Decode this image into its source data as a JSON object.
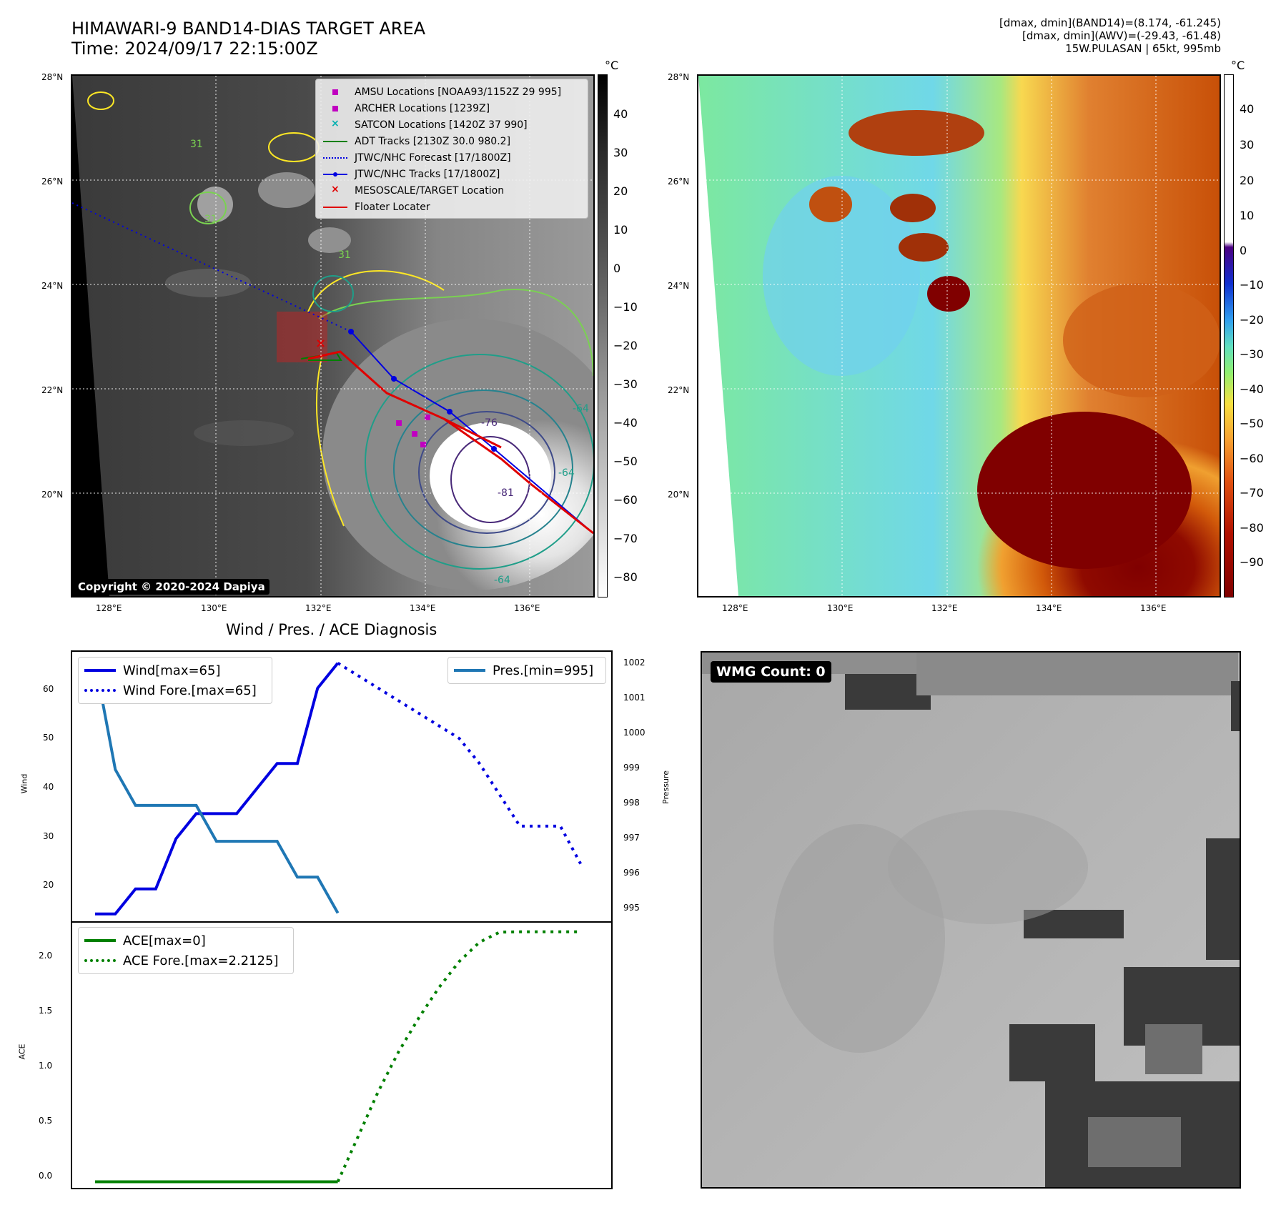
{
  "header": {
    "title_line1": "HIMAWARI-9 BAND14-DIAS TARGET AREA",
    "title_line2": "Time: 2024/09/17 22:15:00Z",
    "right_line1": "[dmax, dmin](BAND14)=(8.174, -61.245)",
    "right_line2": "[dmax, dmin](AWV)=(-29.43, -61.48)",
    "right_line3": "15W.PULASAN | 65kt, 995mb"
  },
  "map_axes": {
    "lat_labels": [
      "28°N",
      "26°N",
      "24°N",
      "22°N",
      "20°N"
    ],
    "lon_labels": [
      "128°E",
      "130°E",
      "132°E",
      "134°E",
      "136°E"
    ]
  },
  "map1": {
    "legend": [
      {
        "label": "AMSU Locations [NOAA93/1152Z 29 995]",
        "color": "#c000c0",
        "kind": "square"
      },
      {
        "label": "ARCHER Locations [1239Z]",
        "color": "#c000c0",
        "kind": "square"
      },
      {
        "label": "SATCON Locations [1420Z 37 990]",
        "color": "#00b0b0",
        "kind": "x"
      },
      {
        "label": "ADT Tracks [2130Z 30.0 980.2]",
        "color": "#008000",
        "kind": "line"
      },
      {
        "label": "JTWC/NHC Forecast [17/1800Z]",
        "color": "#0000e0",
        "kind": "dotted"
      },
      {
        "label": "JTWC/NHC Tracks [17/1800Z]",
        "color": "#0000e0",
        "kind": "linedot"
      },
      {
        "label": "MESOSCALE/TARGET Location",
        "color": "#e00000",
        "kind": "x"
      },
      {
        "label": "Floater Locater",
        "color": "#e00000",
        "kind": "line"
      }
    ],
    "copyright": "Copyright © 2020-2024 Dapiya",
    "contour_labels": [
      "31",
      "31",
      "31",
      "-64",
      "-76",
      "-81",
      "-64",
      "-64"
    ],
    "colorbar_unit": "°C",
    "colorbar_ticks": [
      "40",
      "30",
      "20",
      "10",
      "0",
      "−10",
      "−20",
      "−30",
      "−40",
      "−50",
      "−60",
      "−70",
      "−80"
    ]
  },
  "map2": {
    "colorbar_unit": "°C",
    "colorbar_ticks": [
      "40",
      "30",
      "20",
      "10",
      "0",
      "−10",
      "−20",
      "−30",
      "−40",
      "−50",
      "−60",
      "−70",
      "−80",
      "−90"
    ]
  },
  "diag": {
    "title": "Wind / Pres. / ACE Diagnosis",
    "wind_ylabel": "Wind",
    "pres_ylabel": "Pressure",
    "ace_ylabel": "ACE",
    "wind_legend": [
      "Wind[max=65]",
      "Wind Fore.[max=65]"
    ],
    "pres_legend": "Pres.[min=995]",
    "ace_legend": [
      "ACE[max=0]",
      "ACE Fore.[max=2.2125]"
    ],
    "wind_ticks": [
      "60",
      "50",
      "40",
      "30",
      "20"
    ],
    "pres_ticks": [
      "1002",
      "1001",
      "1000",
      "999",
      "998",
      "997",
      "996",
      "995"
    ],
    "ace_ticks": [
      "2.0",
      "1.5",
      "1.0",
      "0.5",
      "0.0"
    ]
  },
  "wmg": {
    "label": "WMG Count: 0"
  },
  "chart_data": [
    {
      "type": "line",
      "title": "Wind / Pres. / ACE Diagnosis",
      "ylabel": "Wind",
      "ylim": [
        13,
        67
      ],
      "series": [
        {
          "name": "Wind[max=65]",
          "color": "#0000e0",
          "style": "solid",
          "x": [
            0,
            1,
            2,
            3,
            4,
            5,
            6,
            7,
            8,
            9,
            10,
            11,
            12
          ],
          "values": [
            15,
            15,
            20,
            20,
            30,
            35,
            35,
            35,
            40,
            45,
            45,
            60,
            65
          ]
        },
        {
          "name": "Wind Fore.[max=65]",
          "color": "#0000e0",
          "style": "dotted",
          "x": [
            12,
            18,
            19,
            21,
            23,
            24
          ],
          "values": [
            65,
            50,
            45,
            32.5,
            32.5,
            25
          ]
        }
      ]
    },
    {
      "type": "line",
      "ylabel": "Pressure",
      "ylim": [
        994.8,
        1002.3
      ],
      "series": [
        {
          "name": "Pres.[min=995]",
          "color": "#1f77b4",
          "style": "solid",
          "x": [
            0,
            1,
            2,
            3,
            4,
            5,
            6,
            7,
            8,
            9,
            10,
            11,
            12
          ],
          "values": [
            1002,
            999,
            998,
            998,
            998,
            998,
            997,
            997,
            997,
            997,
            996,
            996,
            995
          ]
        }
      ]
    },
    {
      "type": "line",
      "ylabel": "ACE",
      "ylim": [
        -0.05,
        2.35
      ],
      "series": [
        {
          "name": "ACE[max=0]",
          "color": "#008000",
          "style": "solid",
          "x": [
            0,
            12
          ],
          "values": [
            0,
            0
          ]
        },
        {
          "name": "ACE Fore.[max=2.2125]",
          "color": "#008000",
          "style": "dotted",
          "x": [
            12,
            13,
            14,
            15,
            16,
            17,
            18,
            19,
            20,
            21,
            22,
            23,
            24
          ],
          "values": [
            0,
            0.4,
            0.8,
            1.15,
            1.45,
            1.72,
            1.95,
            2.12,
            2.21,
            2.2125,
            2.2125,
            2.2125,
            2.2125
          ]
        }
      ]
    }
  ]
}
